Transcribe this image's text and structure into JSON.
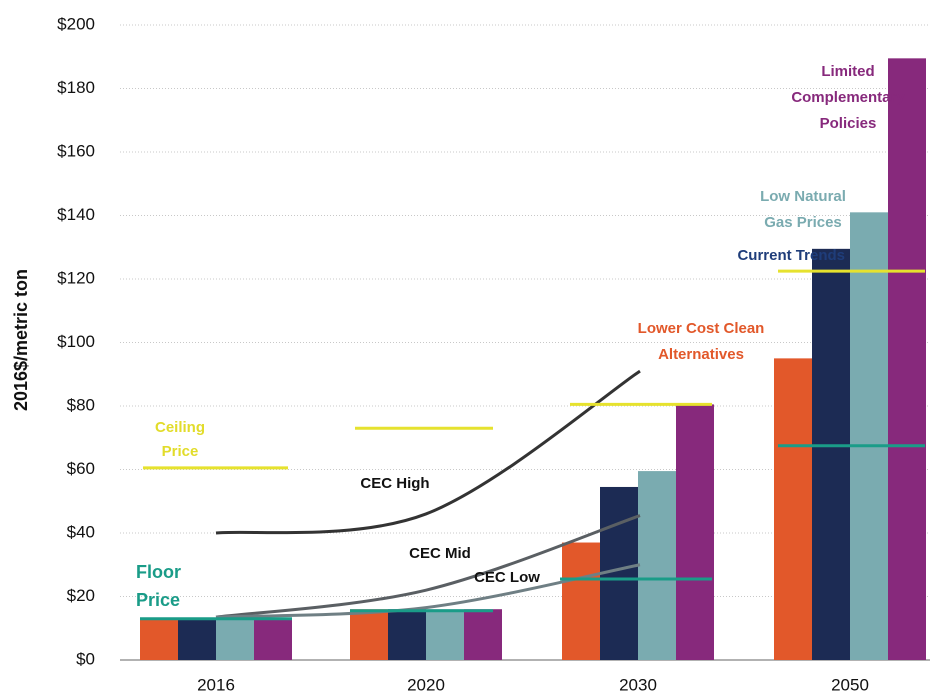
{
  "chart_data": {
    "type": "bar",
    "ylabel": "2016$/metric ton",
    "categories": [
      "2016",
      "2020",
      "2030",
      "2050"
    ],
    "series": [
      {
        "name": "Lower Cost Clean Alternatives",
        "color": "#e2582a",
        "values": [
          13,
          16,
          37,
          95
        ]
      },
      {
        "name": "Current Trends",
        "color": "#1c2b54",
        "values": [
          13,
          16,
          54.5,
          129.5
        ]
      },
      {
        "name": "Low Natural Gas Prices",
        "color": "#7aabb0",
        "values": [
          13,
          16,
          59.5,
          141
        ]
      },
      {
        "name": "Limited Complementary Policies",
        "color": "#87297c",
        "values": [
          13,
          16,
          80.5,
          189.5
        ]
      }
    ],
    "ceiling_price": {
      "name": "Ceiling Price",
      "color": "#e6e22e",
      "values": [
        60.5,
        73,
        80.5,
        122.5
      ]
    },
    "floor_price": {
      "name": "Floor Price",
      "color": "#1a9c88",
      "values": [
        13,
        15.5,
        25.5,
        67.5
      ]
    },
    "cec_lines": [
      {
        "name": "CEC High",
        "color": "#333333",
        "values": [
          40,
          46,
          91,
          null
        ]
      },
      {
        "name": "CEC Mid",
        "color": "#5a5f63",
        "values": [
          13.5,
          22,
          45.5,
          null
        ]
      },
      {
        "name": "CEC Low",
        "color": "#6f7f84",
        "values": [
          13.5,
          16.5,
          30,
          null
        ]
      }
    ],
    "ylim": [
      0,
      200
    ],
    "yticks": [
      {
        "value": 0,
        "label": "$0"
      },
      {
        "value": 20,
        "label": "$20"
      },
      {
        "value": 40,
        "label": "$40"
      },
      {
        "value": 60,
        "label": "$60"
      },
      {
        "value": 80,
        "label": "$80"
      },
      {
        "value": 100,
        "label": "$100"
      },
      {
        "value": 120,
        "label": "$120"
      },
      {
        "value": 140,
        "label": "$140"
      },
      {
        "value": 160,
        "label": "$160"
      },
      {
        "value": 180,
        "label": "$180"
      },
      {
        "value": 200,
        "label": "$200"
      }
    ],
    "grid": true
  }
}
